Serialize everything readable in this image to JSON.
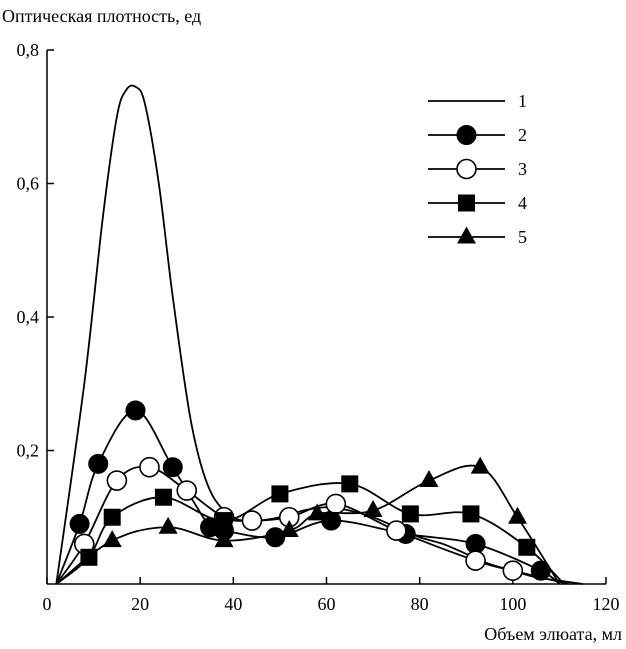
{
  "chart_data": {
    "type": "line",
    "ylabel": "Оптическая плотность, ед",
    "xlabel": "Объем элюата, мл",
    "xlim": [
      0,
      120
    ],
    "ylim": [
      0,
      0.8
    ],
    "xticks": [
      0,
      20,
      40,
      60,
      80,
      100,
      120
    ],
    "xtick_labels": [
      "0",
      "20",
      "40",
      "60",
      "80",
      "100",
      "120"
    ],
    "yticks": [
      0.2,
      0.4,
      0.6,
      0.8
    ],
    "ytick_labels": [
      "0,2",
      "0,4",
      "0,6",
      "0,8"
    ],
    "legend_position": "top-right",
    "grid": false,
    "series": [
      {
        "name": "1",
        "marker": "none",
        "x": [
          2,
          8,
          12,
          15,
          17,
          19,
          21,
          24,
          27,
          31,
          35,
          40,
          45,
          50,
          55,
          60,
          65,
          70,
          75,
          80,
          85,
          90,
          95,
          100,
          105,
          110,
          115
        ],
        "y": [
          0.0,
          0.3,
          0.55,
          0.7,
          0.74,
          0.745,
          0.72,
          0.6,
          0.43,
          0.24,
          0.14,
          0.1,
          0.095,
          0.1,
          0.11,
          0.115,
          0.11,
          0.1,
          0.085,
          0.07,
          0.06,
          0.045,
          0.03,
          0.02,
          0.01,
          0.005,
          0.0
        ]
      },
      {
        "name": "2",
        "marker": "filled-circle",
        "x": [
          2,
          7,
          11,
          19,
          27,
          35,
          38,
          49,
          61,
          77,
          92,
          106,
          110
        ],
        "y": [
          0.0,
          0.09,
          0.18,
          0.26,
          0.175,
          0.085,
          0.08,
          0.07,
          0.095,
          0.075,
          0.06,
          0.02,
          0.0
        ]
      },
      {
        "name": "3",
        "marker": "open-circle",
        "x": [
          2,
          8,
          15,
          22,
          30,
          38,
          44,
          52,
          62,
          75,
          92,
          100,
          112
        ],
        "y": [
          0.0,
          0.06,
          0.155,
          0.175,
          0.14,
          0.1,
          0.095,
          0.1,
          0.12,
          0.08,
          0.035,
          0.02,
          0.0
        ]
      },
      {
        "name": "4",
        "marker": "filled-square",
        "x": [
          2,
          9,
          14,
          25,
          38,
          50,
          65,
          78,
          91,
          103,
          111
        ],
        "y": [
          0.0,
          0.04,
          0.1,
          0.13,
          0.095,
          0.135,
          0.15,
          0.105,
          0.105,
          0.055,
          0.0
        ]
      },
      {
        "name": "5",
        "marker": "filled-triangle",
        "x": [
          2,
          14,
          26,
          38,
          52,
          58,
          70,
          82,
          93,
          101,
          110
        ],
        "y": [
          0.0,
          0.065,
          0.085,
          0.065,
          0.08,
          0.105,
          0.11,
          0.155,
          0.175,
          0.1,
          0.0
        ]
      }
    ]
  }
}
